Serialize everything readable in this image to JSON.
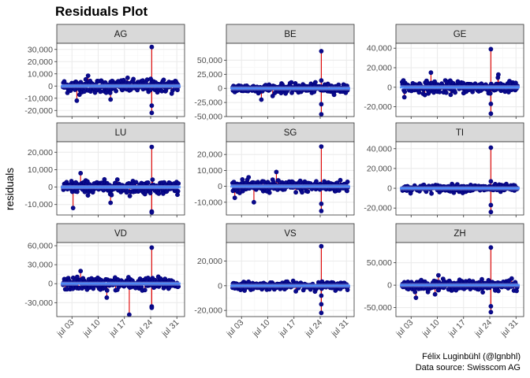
{
  "chart_data": {
    "type": "scatter",
    "title": "Residuals Plot",
    "ylabel": "residuals",
    "xlabel": "",
    "x_ticks": [
      "jul 03",
      "jul 10",
      "jul 17",
      "jul 24",
      "jul 31"
    ],
    "x_range": [
      "2020-06-30",
      "2020-08-01"
    ],
    "caption": [
      "Félix Luginbühl (@lgnbhl)",
      "Data source: Swisscom AG"
    ],
    "grid": true,
    "colors": {
      "point": "#00007a",
      "point_fill": "#0a0a8c",
      "residual_line": "#e00000",
      "smooth": "#4a8cff",
      "strip_fill": "#d9d9d9",
      "grid_major": "#ebebeb",
      "grid_minor": "#f5f5f5"
    },
    "panels": [
      {
        "name": "AG",
        "ylim": [
          -25000,
          35000
        ],
        "yticks": [
          -20000,
          -10000,
          0,
          10000,
          20000,
          30000
        ],
        "ytick_labels": [
          "-20,000",
          "-10,000",
          "0",
          "10,000",
          "20,000",
          "30,000"
        ],
        "spread": 4500,
        "extremes": [
          {
            "x": "2020-07-24",
            "y": 32000
          },
          {
            "x": "2020-07-24",
            "y": -16000
          },
          {
            "x": "2020-07-24",
            "y": -22000
          },
          {
            "x": "2020-07-07",
            "y": 8500
          },
          {
            "x": "2020-07-04",
            "y": -12000
          },
          {
            "x": "2020-07-13",
            "y": -11000
          }
        ]
      },
      {
        "name": "BE",
        "ylim": [
          -50000,
          80000
        ],
        "yticks": [
          -50000,
          -25000,
          0,
          25000,
          50000
        ],
        "ytick_labels": [
          "-50,000",
          "-25,000",
          "0",
          "25,000",
          "50,000"
        ],
        "spread": 6500,
        "extremes": [
          {
            "x": "2020-07-24",
            "y": 66000
          },
          {
            "x": "2020-07-24",
            "y": -28000
          },
          {
            "x": "2020-07-24",
            "y": -46000
          },
          {
            "x": "2020-07-24",
            "y": 14000
          },
          {
            "x": "2020-07-08",
            "y": -20000
          }
        ]
      },
      {
        "name": "GE",
        "ylim": [
          -30000,
          45000
        ],
        "yticks": [
          -20000,
          0,
          20000,
          40000
        ],
        "ytick_labels": [
          "-20,000",
          "0",
          "20,000",
          "40,000"
        ],
        "spread": 5000,
        "extremes": [
          {
            "x": "2020-07-24",
            "y": 39000
          },
          {
            "x": "2020-07-24",
            "y": -17000
          },
          {
            "x": "2020-07-24",
            "y": -27000
          },
          {
            "x": "2020-07-08",
            "y": 15000
          },
          {
            "x": "2020-07-26",
            "y": 13000
          }
        ]
      },
      {
        "name": "LU",
        "ylim": [
          -16000,
          26000
        ],
        "yticks": [
          -10000,
          0,
          10000,
          20000
        ],
        "ytick_labels": [
          "-10,000",
          "0",
          "10,000",
          "20,000"
        ],
        "spread": 3000,
        "extremes": [
          {
            "x": "2020-07-24",
            "y": 23000
          },
          {
            "x": "2020-07-24",
            "y": -14000
          },
          {
            "x": "2020-07-24",
            "y": -14500
          },
          {
            "x": "2020-07-03",
            "y": -12000
          },
          {
            "x": "2020-07-05",
            "y": 8000
          },
          {
            "x": "2020-07-13",
            "y": -9000
          }
        ]
      },
      {
        "name": "SG",
        "ylim": [
          -18000,
          28000
        ],
        "yticks": [
          -10000,
          0,
          10000,
          20000
        ],
        "ytick_labels": [
          "-10,000",
          "0",
          "10,000",
          "20,000"
        ],
        "spread": 3000,
        "extremes": [
          {
            "x": "2020-07-24",
            "y": 25000
          },
          {
            "x": "2020-07-24",
            "y": -11000
          },
          {
            "x": "2020-07-24",
            "y": -15500
          },
          {
            "x": "2020-07-06",
            "y": -10000
          },
          {
            "x": "2020-07-12",
            "y": 9000
          }
        ]
      },
      {
        "name": "TI",
        "ylim": [
          -27000,
          47000
        ],
        "yticks": [
          -20000,
          0,
          20000,
          40000
        ],
        "ytick_labels": [
          "-20,000",
          "0",
          "20,000",
          "40,000"
        ],
        "spread": 3000,
        "extremes": [
          {
            "x": "2020-07-24",
            "y": 41000
          },
          {
            "x": "2020-07-24",
            "y": -17000
          },
          {
            "x": "2020-07-24",
            "y": -24000
          },
          {
            "x": "2020-07-24",
            "y": 7000
          }
        ]
      },
      {
        "name": "VD",
        "ylim": [
          -52000,
          65000
        ],
        "yticks": [
          -30000,
          0,
          30000,
          60000
        ],
        "ytick_labels": [
          "-30,000",
          "0",
          "30,000",
          "60,000"
        ],
        "spread": 8000,
        "extremes": [
          {
            "x": "2020-07-24",
            "y": 57000
          },
          {
            "x": "2020-07-24",
            "y": -36000
          },
          {
            "x": "2020-07-24",
            "y": -38000
          },
          {
            "x": "2020-07-18",
            "y": -49000
          },
          {
            "x": "2020-07-12",
            "y": -22000
          },
          {
            "x": "2020-07-05",
            "y": 20000
          }
        ]
      },
      {
        "name": "VS",
        "ylim": [
          -25000,
          35000
        ],
        "yticks": [
          -20000,
          0,
          20000
        ],
        "ytick_labels": [
          "-20,000",
          "0",
          "20,000"
        ],
        "spread": 2500,
        "extremes": [
          {
            "x": "2020-07-24",
            "y": 32000
          },
          {
            "x": "2020-07-24",
            "y": -15000
          },
          {
            "x": "2020-07-24",
            "y": -22000
          },
          {
            "x": "2020-07-24",
            "y": -8000
          }
        ]
      },
      {
        "name": "ZH",
        "ylim": [
          -70000,
          95000
        ],
        "yticks": [
          -50000,
          0,
          50000
        ],
        "ytick_labels": [
          "-50,000",
          "0",
          "50,000"
        ],
        "spread": 9000,
        "extremes": [
          {
            "x": "2020-07-24",
            "y": 84000
          },
          {
            "x": "2020-07-24",
            "y": -47000
          },
          {
            "x": "2020-07-24",
            "y": -60000
          },
          {
            "x": "2020-07-04",
            "y": -28000
          },
          {
            "x": "2020-07-10",
            "y": 22000
          }
        ]
      }
    ]
  }
}
